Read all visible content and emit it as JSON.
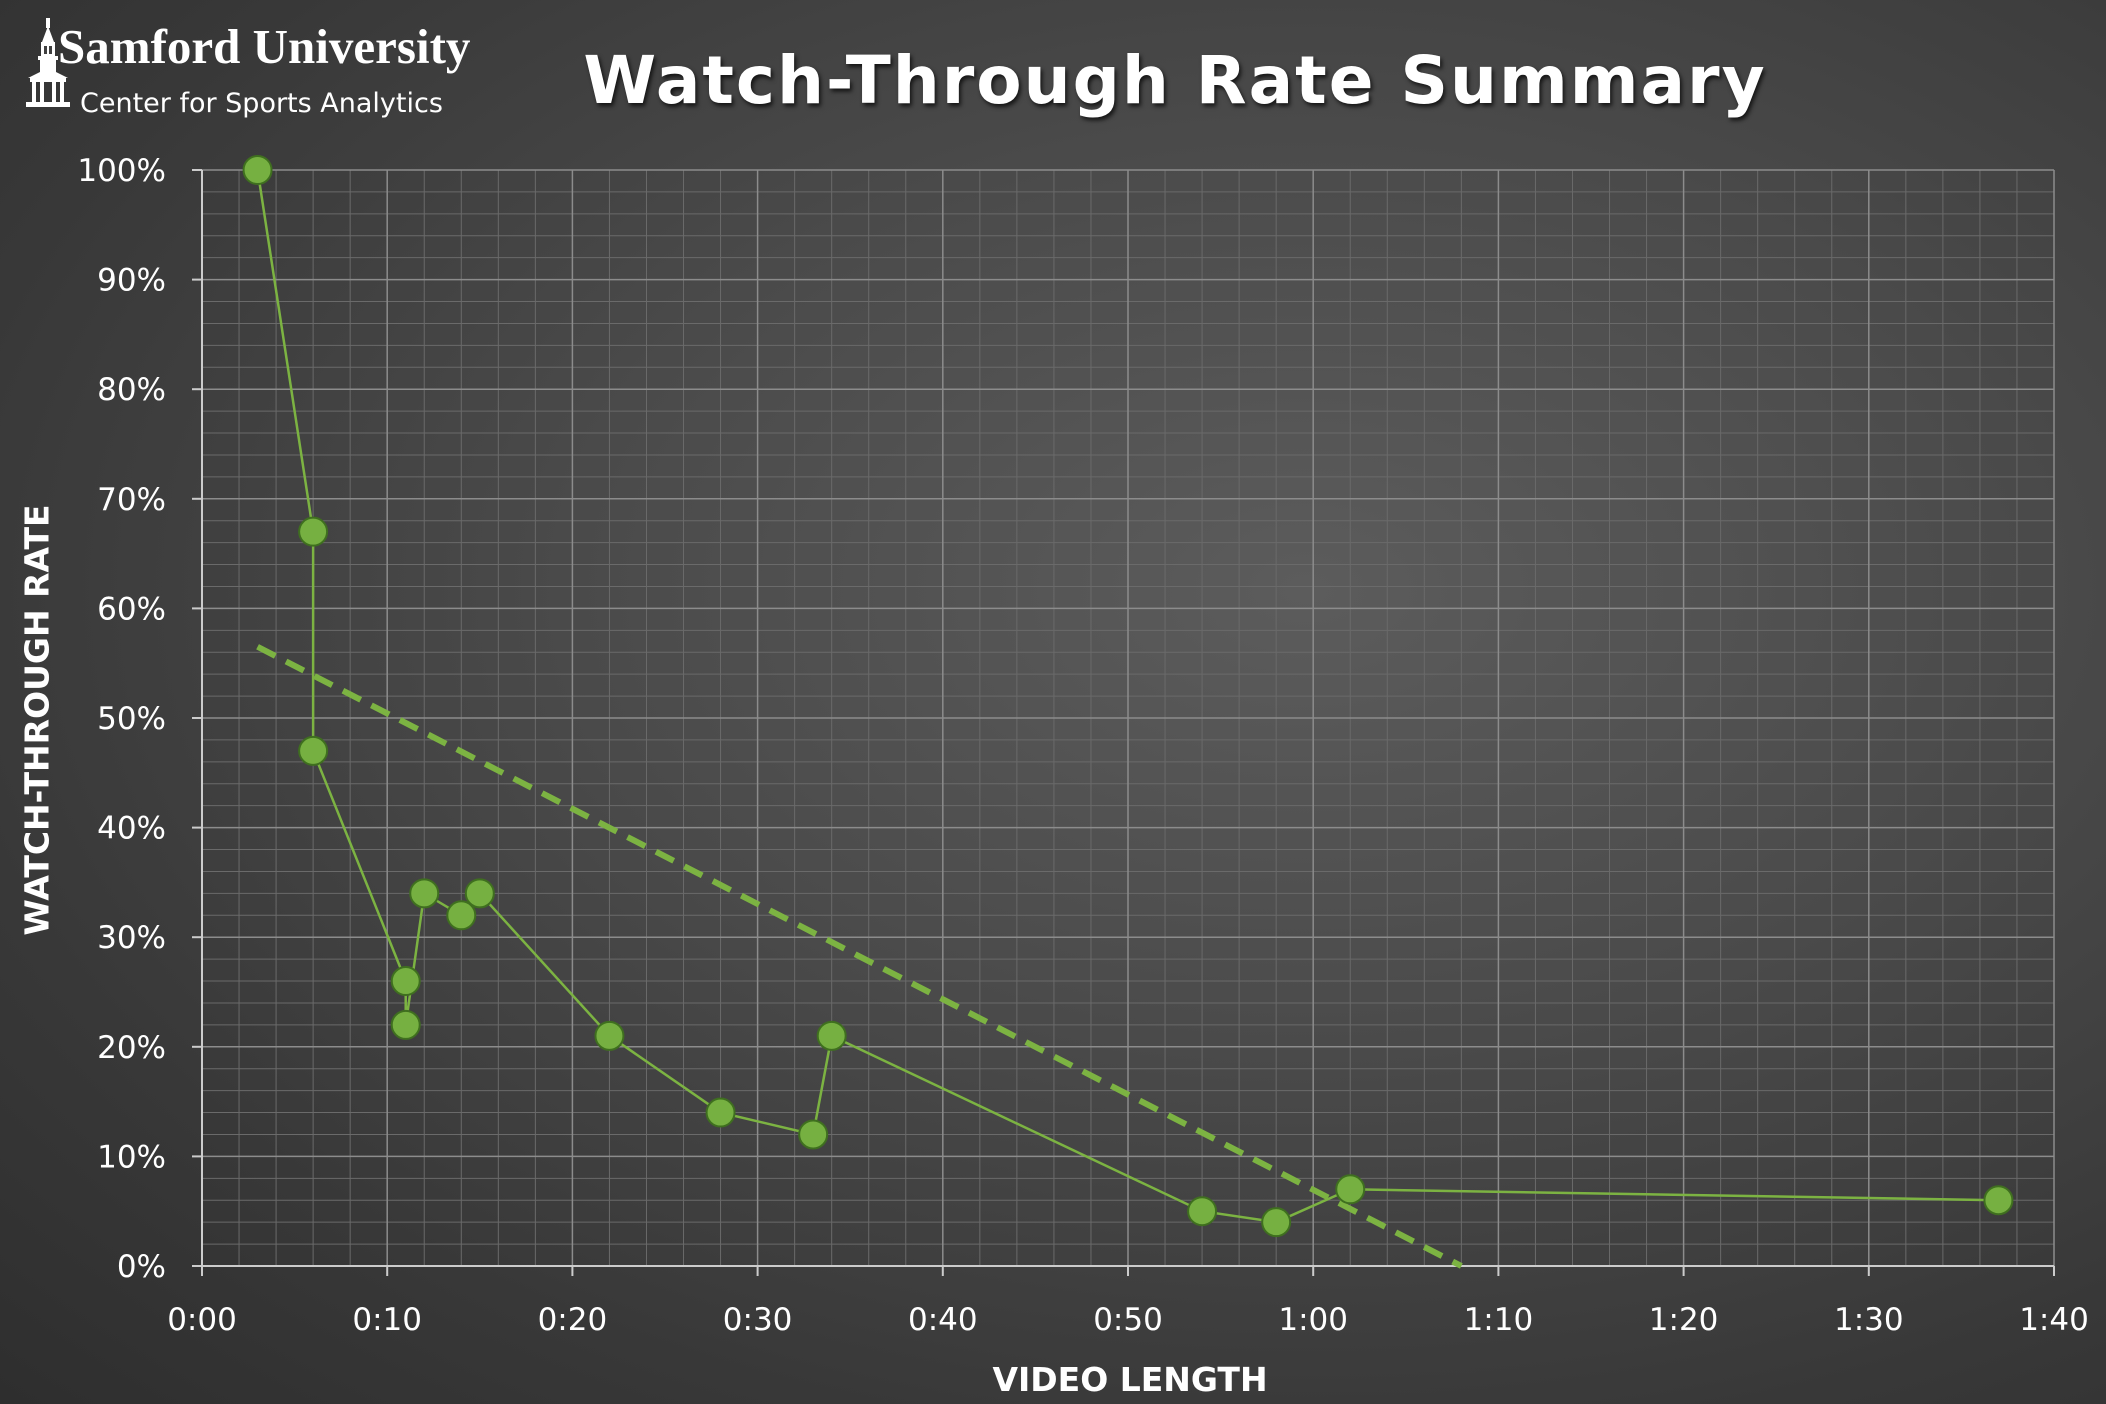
{
  "header": {
    "logo_name": "Samford University",
    "logo_sub": "Center for Sports Analytics"
  },
  "chart_data": {
    "type": "scatter",
    "title": "Watch-Through Rate Summary",
    "xlabel": "VIDEO LENGTH",
    "ylabel": "WATCH-THROUGH RATE",
    "x_unit": "seconds (m:ss)",
    "xlim": [
      0,
      100
    ],
    "ylim": [
      0,
      100
    ],
    "x_ticks": [
      "0:00",
      "0:10",
      "0:20",
      "0:30",
      "0:40",
      "0:50",
      "1:00",
      "1:10",
      "1:20",
      "1:30",
      "1:40"
    ],
    "y_ticks": [
      "0%",
      "10%",
      "20%",
      "30%",
      "40%",
      "50%",
      "60%",
      "70%",
      "80%",
      "90%",
      "100%"
    ],
    "grid": true,
    "legend": "none",
    "series": [
      {
        "style": "markers-and-line",
        "color": "#7cb342",
        "marker_color": "#76b041",
        "points": [
          {
            "x": "0:03",
            "y": 100
          },
          {
            "x": "0:06",
            "y": 67
          },
          {
            "x": "0:06",
            "y": 47
          },
          {
            "x": "0:11",
            "y": 26
          },
          {
            "x": "0:11",
            "y": 22
          },
          {
            "x": "0:12",
            "y": 34
          },
          {
            "x": "0:14",
            "y": 32
          },
          {
            "x": "0:15",
            "y": 34
          },
          {
            "x": "0:22",
            "y": 21
          },
          {
            "x": "0:28",
            "y": 14
          },
          {
            "x": "0:33",
            "y": 12
          },
          {
            "x": "0:34",
            "y": 21
          },
          {
            "x": "0:54",
            "y": 5
          },
          {
            "x": "0:58",
            "y": 4
          },
          {
            "x": "1:02",
            "y": 7
          },
          {
            "x": "1:37",
            "y": 6
          }
        ]
      }
    ],
    "trendline": {
      "style": "dashed",
      "color": "#7cb342",
      "points": [
        {
          "x": "0:03",
          "y": 56.5
        },
        {
          "x": "1:08",
          "y": 0
        }
      ]
    }
  }
}
